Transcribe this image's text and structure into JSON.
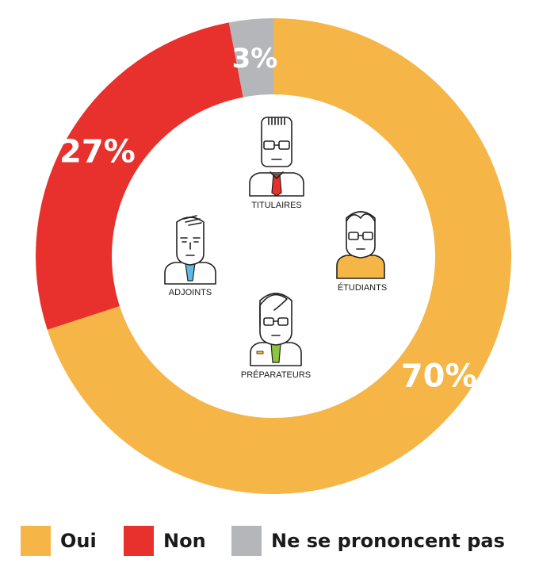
{
  "chart_data": {
    "type": "pie",
    "categories": [
      "Oui",
      "Non",
      "Ne se prononcent pas"
    ],
    "values": [
      70,
      27,
      3
    ],
    "value_labels": [
      "70%",
      "27%",
      "3%"
    ],
    "colors": [
      "#f5b547",
      "#e8302c",
      "#b5b6ba"
    ],
    "legend_position": "bottom",
    "donut": true
  },
  "center": {
    "roles": [
      "TITULAIRES",
      "ADJOINTS",
      "ÉTUDIANTS",
      "PRÉPARATEURS"
    ]
  }
}
